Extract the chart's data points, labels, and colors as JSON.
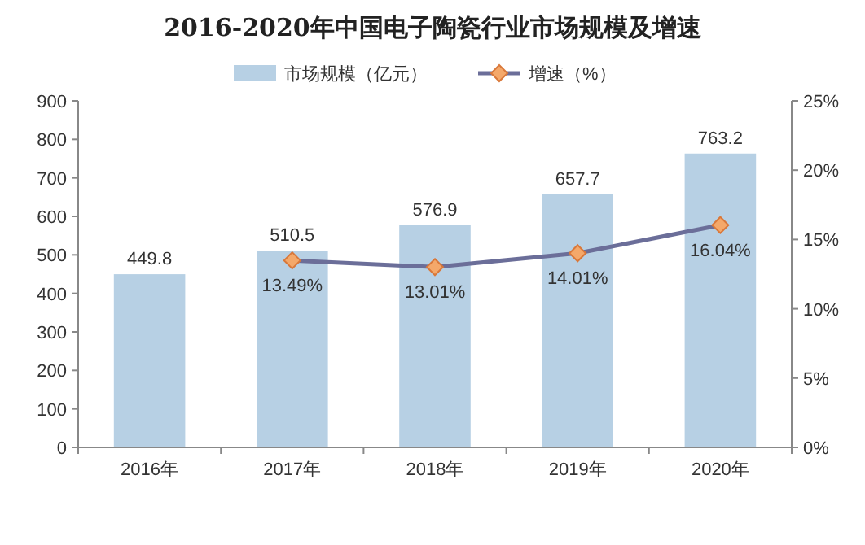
{
  "chart_data": {
    "type": "bar",
    "title": "2016-2020年中国电子陶瓷行业市场规模及增速",
    "categories": [
      "2016年",
      "2017年",
      "2018年",
      "2019年",
      "2020年"
    ],
    "series": [
      {
        "name": "市场规模（亿元）",
        "color": "#b7d0e4",
        "values": [
          449.8,
          510.5,
          576.9,
          657.7,
          763.2
        ],
        "value_labels": [
          "449.8",
          "510.5",
          "576.9",
          "657.7",
          "763.2"
        ]
      },
      {
        "name": "增速（%）",
        "type": "line",
        "axis": "y2",
        "color": "#6b6e99",
        "values": [
          null,
          13.49,
          13.01,
          14.01,
          16.04
        ],
        "value_labels": [
          null,
          "13.49%",
          "13.01%",
          "14.01%",
          "16.04%"
        ]
      }
    ],
    "ylim": [
      0,
      900
    ],
    "yticks": [
      0,
      100,
      200,
      300,
      400,
      500,
      600,
      700,
      800,
      900
    ],
    "y2lim": [
      0,
      25
    ],
    "y2ticks": [
      {
        "value": 0,
        "label": "0%"
      },
      {
        "value": 5,
        "label": "5%"
      },
      {
        "value": 10,
        "label": "10%"
      },
      {
        "value": 15,
        "label": "15%"
      },
      {
        "value": 20,
        "label": "20%"
      },
      {
        "value": 25,
        "label": "25%"
      }
    ],
    "marker": "diamond",
    "line_style": "solid",
    "legend": "top",
    "grid": false
  }
}
